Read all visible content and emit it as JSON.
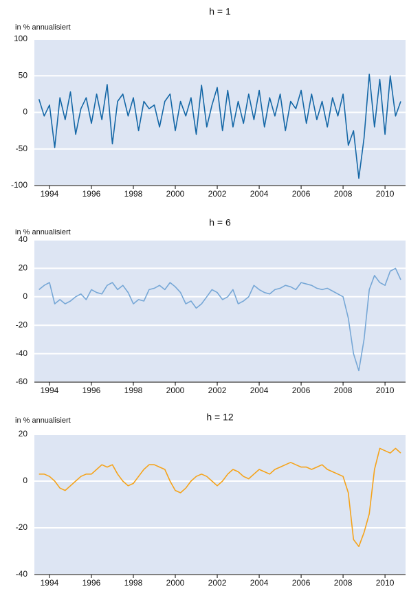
{
  "chart_data": [
    {
      "type": "line",
      "title": "h = 1",
      "y_label": "in % annualisiert",
      "x": [
        1993.5,
        1993.75,
        1994,
        1994.25,
        1994.5,
        1994.75,
        1995,
        1995.25,
        1995.5,
        1995.75,
        1996,
        1996.25,
        1996.5,
        1996.75,
        1997,
        1997.25,
        1997.5,
        1997.75,
        1998,
        1998.25,
        1998.5,
        1998.75,
        1999,
        1999.25,
        1999.5,
        1999.75,
        2000,
        2000.25,
        2000.5,
        2000.75,
        2001,
        2001.25,
        2001.5,
        2001.75,
        2002,
        2002.25,
        2002.5,
        2002.75,
        2003,
        2003.25,
        2003.5,
        2003.75,
        2004,
        2004.25,
        2004.5,
        2004.75,
        2005,
        2005.25,
        2005.5,
        2005.75,
        2006,
        2006.25,
        2006.5,
        2006.75,
        2007,
        2007.25,
        2007.5,
        2007.75,
        2008,
        2008.25,
        2008.5,
        2008.75,
        2009,
        2009.25,
        2009.5,
        2009.75,
        2010,
        2010.25,
        2010.5,
        2010.75
      ],
      "series": [
        {
          "color": "#1467a6",
          "values": [
            18,
            -5,
            10,
            -48,
            20,
            -10,
            28,
            -30,
            5,
            20,
            -15,
            25,
            -10,
            38,
            -43,
            15,
            25,
            -5,
            20,
            -25,
            15,
            5,
            10,
            -20,
            15,
            25,
            -25,
            15,
            -5,
            20,
            -30,
            37,
            -20,
            10,
            34,
            -25,
            30,
            -20,
            15,
            -15,
            25,
            -10,
            30,
            -20,
            20,
            -5,
            25,
            -25,
            15,
            5,
            30,
            -15,
            25,
            -10,
            15,
            -20,
            20,
            -5,
            25,
            -45,
            -25,
            -90,
            -35,
            52,
            -20,
            45,
            -30,
            50,
            -5,
            15
          ]
        }
      ],
      "xlim": [
        1993.28,
        2010.98
      ],
      "ylim": [
        -100,
        100
      ],
      "xticks": [
        1994,
        1996,
        1998,
        2000,
        2002,
        2004,
        2006,
        2008,
        2010
      ],
      "yticks": [
        -100,
        -50,
        0,
        50,
        100
      ],
      "grid": true
    },
    {
      "type": "line",
      "title": "h = 6",
      "y_label": "in % annualisiert",
      "x": [
        1993.5,
        1993.75,
        1994,
        1994.25,
        1994.5,
        1994.75,
        1995,
        1995.25,
        1995.5,
        1995.75,
        1996,
        1996.25,
        1996.5,
        1996.75,
        1997,
        1997.25,
        1997.5,
        1997.75,
        1998,
        1998.25,
        1998.5,
        1998.75,
        1999,
        1999.25,
        1999.5,
        1999.75,
        2000,
        2000.25,
        2000.5,
        2000.75,
        2001,
        2001.25,
        2001.5,
        2001.75,
        2002,
        2002.25,
        2002.5,
        2002.75,
        2003,
        2003.25,
        2003.5,
        2003.75,
        2004,
        2004.25,
        2004.5,
        2004.75,
        2005,
        2005.25,
        2005.5,
        2005.75,
        2006,
        2006.25,
        2006.5,
        2006.75,
        2007,
        2007.25,
        2007.5,
        2007.75,
        2008,
        2008.25,
        2008.5,
        2008.75,
        2009,
        2009.25,
        2009.5,
        2009.75,
        2010,
        2010.25,
        2010.5,
        2010.75
      ],
      "series": [
        {
          "color": "#76a7d6",
          "values": [
            5,
            8,
            10,
            -5,
            -2,
            -5,
            -3,
            0,
            2,
            -2,
            5,
            3,
            2,
            8,
            10,
            5,
            8,
            3,
            -5,
            -2,
            -3,
            5,
            6,
            8,
            5,
            10,
            7,
            3,
            -5,
            -3,
            -8,
            -5,
            0,
            5,
            3,
            -2,
            0,
            5,
            -5,
            -3,
            0,
            8,
            5,
            3,
            2,
            5,
            6,
            8,
            7,
            5,
            10,
            9,
            8,
            6,
            5,
            6,
            4,
            2,
            0,
            -15,
            -40,
            -52,
            -30,
            5,
            15,
            10,
            8,
            18,
            20,
            12
          ]
        }
      ],
      "xlim": [
        1993.28,
        2010.98
      ],
      "ylim": [
        -60,
        40
      ],
      "xticks": [
        1994,
        1996,
        1998,
        2000,
        2002,
        2004,
        2006,
        2008,
        2010
      ],
      "yticks": [
        -60,
        -40,
        -20,
        0,
        20,
        40
      ],
      "grid": true
    },
    {
      "type": "line",
      "title": "h = 12",
      "y_label": "in % annualisiert",
      "x": [
        1993.5,
        1993.75,
        1994,
        1994.25,
        1994.5,
        1994.75,
        1995,
        1995.25,
        1995.5,
        1995.75,
        1996,
        1996.25,
        1996.5,
        1996.75,
        1997,
        1997.25,
        1997.5,
        1997.75,
        1998,
        1998.25,
        1998.5,
        1998.75,
        1999,
        1999.25,
        1999.5,
        1999.75,
        2000,
        2000.25,
        2000.5,
        2000.75,
        2001,
        2001.25,
        2001.5,
        2001.75,
        2002,
        2002.25,
        2002.5,
        2002.75,
        2003,
        2003.25,
        2003.5,
        2003.75,
        2004,
        2004.25,
        2004.5,
        2004.75,
        2005,
        2005.25,
        2005.5,
        2005.75,
        2006,
        2006.25,
        2006.5,
        2006.75,
        2007,
        2007.25,
        2007.5,
        2007.75,
        2008,
        2008.25,
        2008.5,
        2008.75,
        2009,
        2009.25,
        2009.5,
        2009.75,
        2010,
        2010.25,
        2010.5,
        2010.75
      ],
      "series": [
        {
          "color": "#f5a31a",
          "values": [
            3,
            3,
            2,
            0,
            -3,
            -4,
            -2,
            0,
            2,
            3,
            3,
            5,
            7,
            6,
            7,
            3,
            0,
            -2,
            -1,
            2,
            5,
            7,
            7,
            6,
            5,
            0,
            -4,
            -5,
            -3,
            0,
            2,
            3,
            2,
            0,
            -2,
            0,
            3,
            5,
            4,
            2,
            1,
            3,
            5,
            4,
            3,
            5,
            6,
            7,
            8,
            7,
            6,
            6,
            5,
            6,
            7,
            5,
            4,
            3,
            2,
            -5,
            -25,
            -28,
            -22,
            -14,
            5,
            14,
            13,
            12,
            14,
            12
          ]
        }
      ],
      "xlim": [
        1993.28,
        2010.98
      ],
      "ylim": [
        -40,
        20
      ],
      "xticks": [
        1994,
        1996,
        1998,
        2000,
        2002,
        2004,
        2006,
        2008,
        2010
      ],
      "yticks": [
        -40,
        -20,
        0,
        20
      ],
      "grid": true
    }
  ]
}
